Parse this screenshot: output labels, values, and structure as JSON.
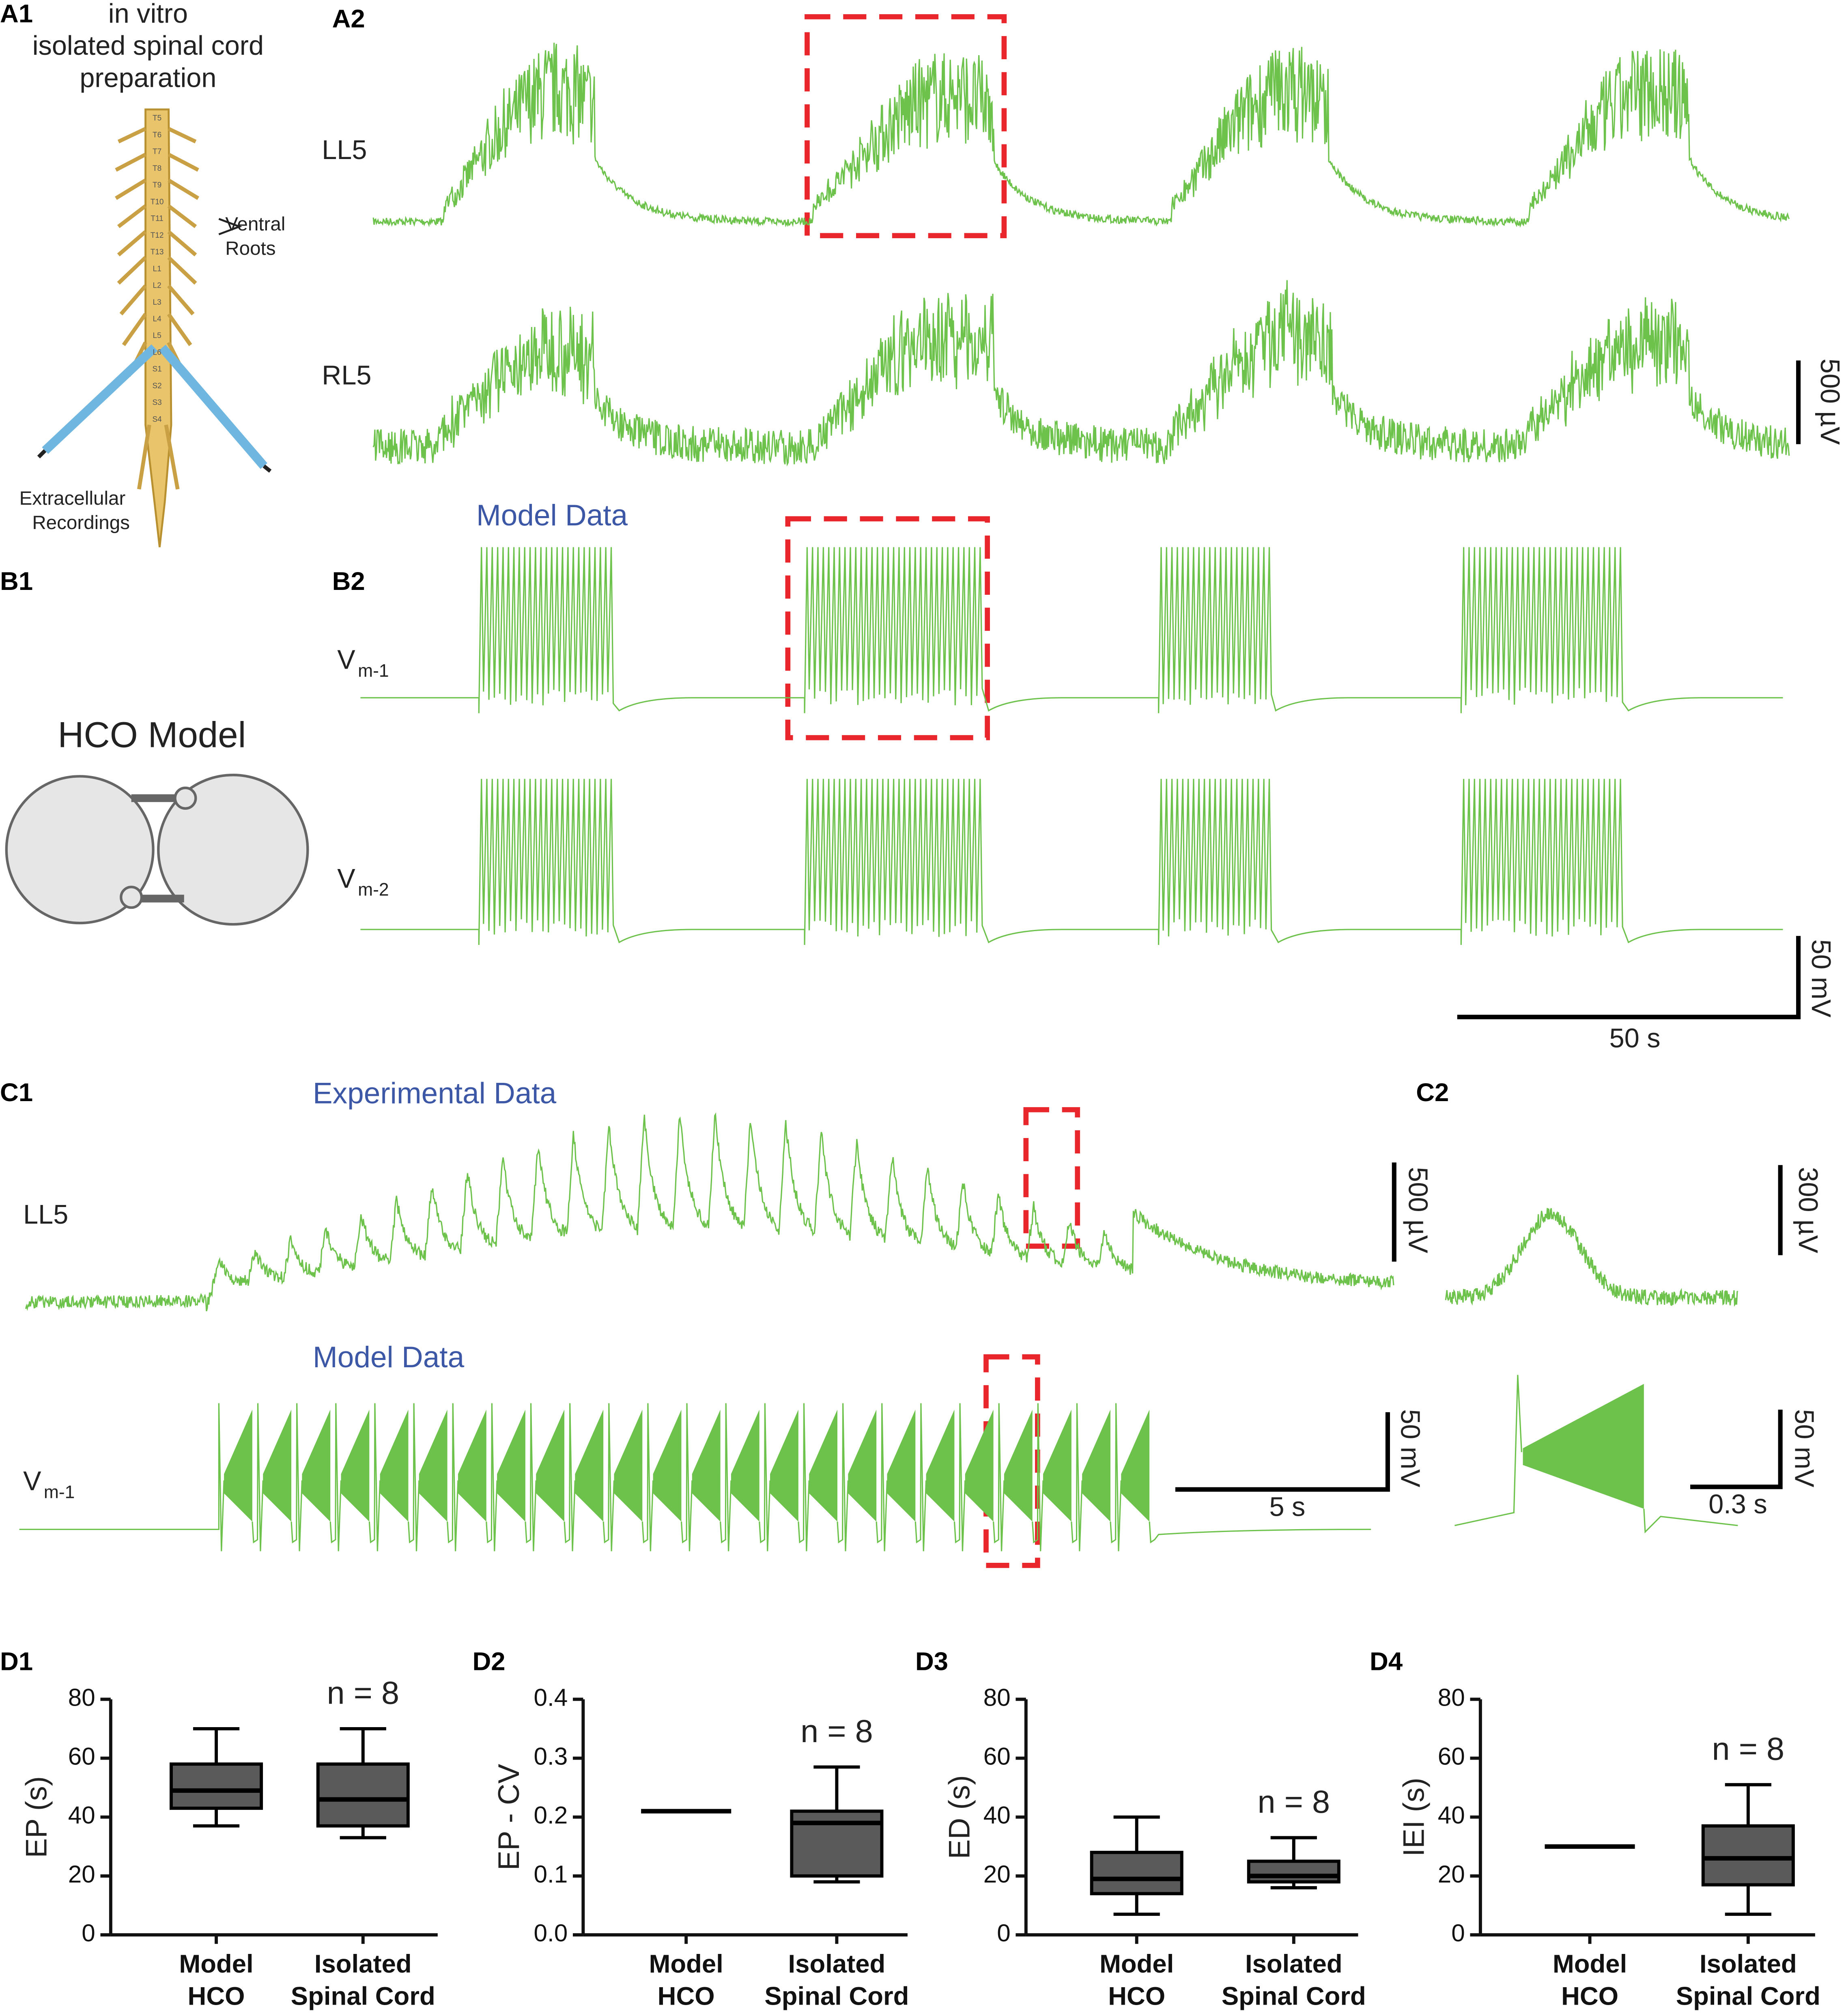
{
  "figure": {
    "A1": {
      "label": "A1",
      "title": [
        "in vitro",
        "isolated spinal cord",
        "preparation"
      ],
      "segments": [
        "T5",
        "T6",
        "T7",
        "T8",
        "T9",
        "T10",
        "T11",
        "T12",
        "T13",
        "L1",
        "L2",
        "L3",
        "L4",
        "L5",
        "L6",
        "S1",
        "S2",
        "S3",
        "S4"
      ],
      "roots": [
        "Ventral",
        "Roots"
      ],
      "recordings": [
        "Extracellular",
        "Recordings"
      ]
    },
    "A2": {
      "label": "A2",
      "traces": [
        "LL5",
        "RL5"
      ],
      "scale": "500 µV"
    },
    "B": {
      "title": "Model Data"
    },
    "B1": {
      "label": "B1",
      "model": "HCO Model"
    },
    "B2": {
      "label": "B2",
      "v1": {
        "v": "V",
        "sub": "m-1"
      },
      "v2": {
        "v": "V",
        "sub": "m-2"
      },
      "scale_v": "50 mV",
      "scale_t": "50 s"
    },
    "C1": {
      "label": "C1",
      "exp_title": "Experimental Data",
      "trace": "LL5",
      "exp_scale": "500 µV",
      "model_title": "Model Data",
      "v": {
        "v": "V",
        "sub": "m-1"
      },
      "model_scale_v": "50 mV",
      "model_scale_t": "5 s"
    },
    "C2": {
      "label": "C2",
      "exp_scale": "300 µV",
      "model_scale_v": "50 mV",
      "model_scale_t": "0.3 s"
    }
  },
  "chart_data": [
    {
      "type": "box",
      "panel": "D1",
      "ylabel": "EP (s)",
      "categories": [
        [
          "Model",
          "HCO"
        ],
        [
          "Isolated",
          "Spinal Cord"
        ]
      ],
      "values": [
        {
          "min": 37,
          "q1": 43,
          "median": 49,
          "q3": 58,
          "max": 70
        },
        {
          "min": 33,
          "q1": 37,
          "median": 46,
          "q3": 58,
          "max": 70
        }
      ],
      "color": "#5a5a5a",
      "ylim": [
        0,
        80
      ],
      "yticks": [
        0,
        20,
        40,
        60,
        80
      ],
      "annotation": "n = 8"
    },
    {
      "type": "box",
      "panel": "D2",
      "ylabel": "EP - CV",
      "categories": [
        [
          "Model",
          "HCO"
        ],
        [
          "Isolated",
          "Spinal Cord"
        ]
      ],
      "values": [
        {
          "min": 0.21,
          "q1": 0.21,
          "median": 0.21,
          "q3": 0.21,
          "max": 0.21
        },
        {
          "min": 0.09,
          "q1": 0.1,
          "median": 0.19,
          "q3": 0.21,
          "max": 0.285
        }
      ],
      "color": "#5a5a5a",
      "ylim": [
        0,
        0.4
      ],
      "yticks": [
        {
          "value": 0,
          "label": "0.0"
        },
        0.1,
        0.2,
        0.3,
        0.4
      ],
      "annotation": "n = 8"
    },
    {
      "type": "box",
      "panel": "D3",
      "ylabel": "ED (s)",
      "categories": [
        [
          "Model",
          "HCO"
        ],
        [
          "Isolated",
          "Spinal Cord"
        ]
      ],
      "values": [
        {
          "min": 7,
          "q1": 14,
          "median": 19,
          "q3": 28,
          "max": 40
        },
        {
          "min": 16,
          "q1": 18,
          "median": 20,
          "q3": 25,
          "max": 33
        }
      ],
      "color": "#5a5a5a",
      "ylim": [
        0,
        80
      ],
      "yticks": [
        0,
        20,
        40,
        60,
        80
      ],
      "annotation": "n = 8"
    },
    {
      "type": "box",
      "panel": "D4",
      "ylabel": "IEI (s)",
      "categories": [
        [
          "Model",
          "HCO"
        ],
        [
          "Isolated",
          "Spinal Cord"
        ]
      ],
      "values": [
        {
          "min": 30,
          "q1": 30,
          "median": 30,
          "q3": 30,
          "max": 30
        },
        {
          "min": 7,
          "q1": 17,
          "median": 26,
          "q3": 37,
          "max": 51
        }
      ],
      "color": "#5a5a5a",
      "ylim": [
        0,
        80
      ],
      "yticks": [
        0,
        20,
        40,
        60,
        80
      ],
      "annotation": "n = 8"
    }
  ]
}
